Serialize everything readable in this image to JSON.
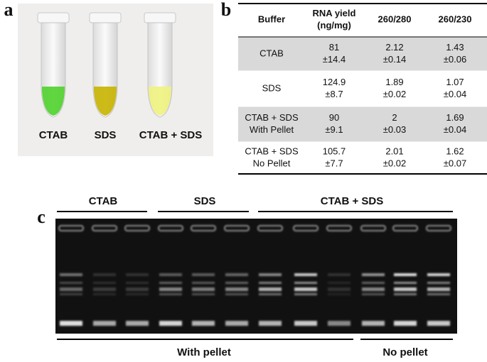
{
  "panel_labels": [
    "a",
    "b",
    "c"
  ],
  "photo": {
    "tube_labels": [
      "CTAB",
      "SDS",
      "CTAB + SDS"
    ]
  },
  "table": {
    "header": [
      [
        "Buffer"
      ],
      [
        "RNA yield",
        "(ng/mg)"
      ],
      [
        "260/280"
      ],
      [
        "260/230"
      ]
    ],
    "rows": [
      [
        [
          "CTAB"
        ],
        [
          "81",
          "±14.4"
        ],
        [
          "2.12",
          "±0.14"
        ],
        [
          "1.43",
          "±0.06"
        ]
      ],
      [
        [
          "SDS"
        ],
        [
          "124.9",
          "±8.7"
        ],
        [
          "1.89",
          "±0.02"
        ],
        [
          "1.07",
          "±0.04"
        ]
      ],
      [
        [
          "CTAB + SDS",
          "With Pellet"
        ],
        [
          "90",
          "±9.1"
        ],
        [
          "2",
          "±0.03"
        ],
        [
          "1.69",
          "±0.04"
        ]
      ],
      [
        [
          "CTAB + SDS",
          "No Pellet"
        ],
        [
          "105.7",
          "±7.7"
        ],
        [
          "2.01",
          "±0.02"
        ],
        [
          "1.62",
          "±0.07"
        ]
      ]
    ]
  },
  "gel": {
    "group_labels": [
      "CTAB",
      "SDS",
      "CTAB + SDS"
    ],
    "bottom_labels": [
      "With pellet",
      "No pellet"
    ]
  }
}
